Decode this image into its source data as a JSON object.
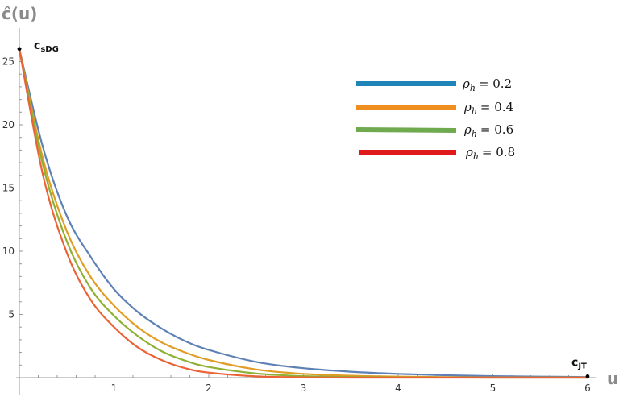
{
  "chart_data": {
    "type": "line",
    "xlabel": "u",
    "ylabel": "ĉ(u)",
    "xlim": [
      0,
      6
    ],
    "ylim": [
      0,
      26
    ],
    "xticks": [
      1,
      2,
      3,
      4,
      5,
      6
    ],
    "yticks": [
      5,
      10,
      15,
      20,
      25
    ],
    "grid": false,
    "legend_position": "top-right",
    "legend_symbol": "ρ",
    "legend_subscript": "h",
    "series": [
      {
        "name": "ρ_h = 0.2",
        "param_label": "= 0.2",
        "color": "#5E81B5",
        "x": [
          0,
          0.25,
          0.5,
          0.75,
          1,
          1.25,
          1.5,
          1.75,
          2,
          2.5,
          3,
          3.5,
          4,
          4.5,
          5,
          5.5,
          6
        ],
        "y": [
          26,
          18.2,
          12.8,
          9.6,
          7.0,
          5.2,
          3.9,
          2.9,
          2.2,
          1.25,
          0.75,
          0.47,
          0.3,
          0.19,
          0.12,
          0.08,
          0.05
        ]
      },
      {
        "name": "ρ_h = 0.4",
        "param_label": "= 0.4",
        "color": "#E19C24",
        "x": [
          0,
          0.25,
          0.5,
          0.75,
          1,
          1.25,
          1.5,
          1.75,
          2,
          2.5,
          3,
          3.5,
          4,
          4.5,
          5,
          5.5,
          6
        ],
        "y": [
          26,
          17.3,
          11.6,
          8.0,
          5.7,
          4.0,
          2.8,
          2.0,
          1.4,
          0.65,
          0.3,
          0.15,
          0.08,
          0.04,
          0.02,
          0.01,
          0.01
        ]
      },
      {
        "name": "ρ_h = 0.6",
        "param_label": "= 0.6",
        "color": "#8FB032",
        "x": [
          0,
          0.25,
          0.5,
          0.75,
          1,
          1.25,
          1.5,
          1.75,
          2,
          2.5,
          3,
          3.5,
          4,
          4.5,
          5,
          5.5,
          6
        ],
        "y": [
          26,
          16.8,
          10.8,
          7.1,
          4.9,
          3.3,
          2.1,
          1.35,
          0.85,
          0.33,
          0.12,
          0.05,
          0.02,
          0.01,
          0.0,
          0.0,
          0.0
        ]
      },
      {
        "name": "ρ_h = 0.8",
        "param_label": "= 0.8",
        "color": "#EB6235",
        "x": [
          0,
          0.25,
          0.5,
          0.75,
          1,
          1.25,
          1.5,
          1.75,
          2,
          2.5,
          3,
          3.5,
          4,
          4.5,
          5,
          5.5,
          6
        ],
        "y": [
          26,
          16.0,
          9.9,
          6.2,
          4.0,
          2.4,
          1.4,
          0.75,
          0.4,
          0.1,
          0.02,
          0.0,
          0.0,
          0.0,
          0.0,
          0.0,
          0.0
        ]
      }
    ],
    "legend_swatch_colors": [
      "#1F84B8",
      "#EE8E1E",
      "#6FAA4F",
      "#E01A1A"
    ],
    "points": [
      {
        "label": "c",
        "sub": "sDG",
        "x": 0,
        "y": 26
      },
      {
        "label": "c",
        "sub": "JT",
        "x": 6,
        "y": 0.1
      }
    ]
  }
}
